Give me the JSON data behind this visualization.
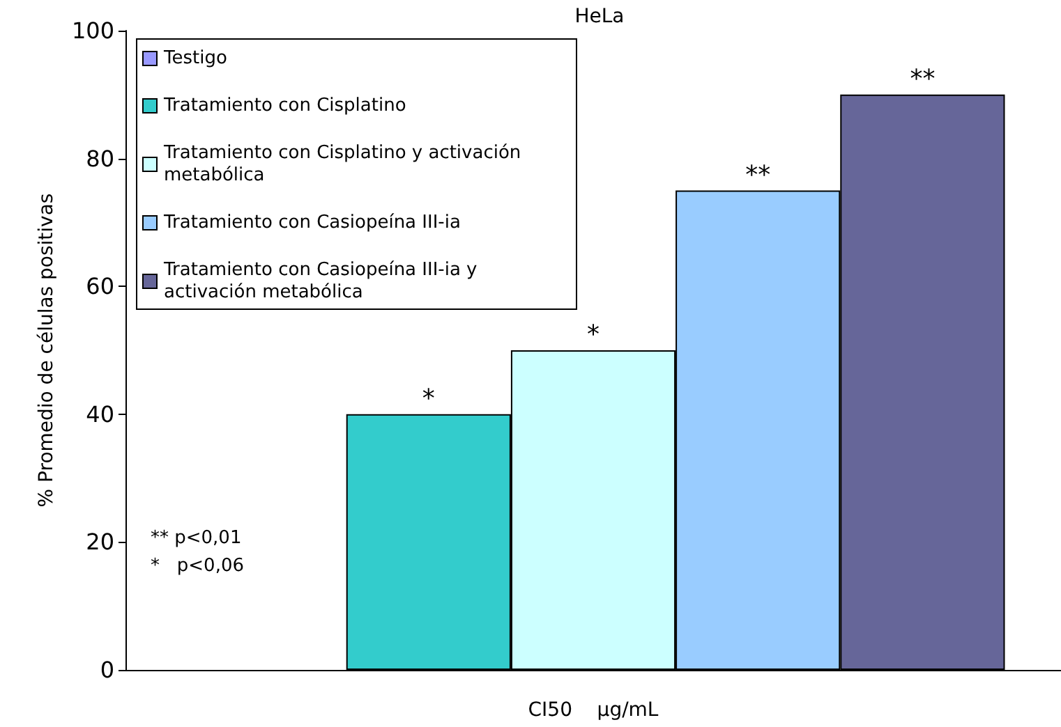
{
  "chart_data": {
    "type": "bar",
    "title": "HeLa",
    "ylabel": "% Promedio de células positivas",
    "xlabel": "CI50    μg/mL",
    "categories": [
      null
    ],
    "series": [
      {
        "name": "Testigo",
        "color": "#9999ff",
        "values": [
          null
        ],
        "value_labels": [
          null
        ]
      },
      {
        "name": "Tratamiento con Cisplatino",
        "color": "#33cccc",
        "values": [
          40
        ],
        "value_labels": [
          "*"
        ]
      },
      {
        "name": "Tratamiento con Cisplatino y activación metabólica",
        "color": "#ccffff",
        "values": [
          50
        ],
        "value_labels": [
          "*"
        ]
      },
      {
        "name": "Tratamiento con Casiopeína III-ia",
        "color": "#99ccff",
        "values": [
          75
        ],
        "value_labels": [
          "**"
        ]
      },
      {
        "name": "Tratamiento con Casiopeína III-ia y activación metabólica",
        "color": "#666699",
        "values": [
          90
        ],
        "value_labels": [
          "**"
        ]
      }
    ],
    "ylim": [
      0,
      100
    ],
    "yticks": [
      0,
      20,
      40,
      60,
      80,
      100
    ],
    "grid": false,
    "legend": "top left",
    "annotations": [
      "** p<0,01",
      "*   p<0,06"
    ]
  }
}
